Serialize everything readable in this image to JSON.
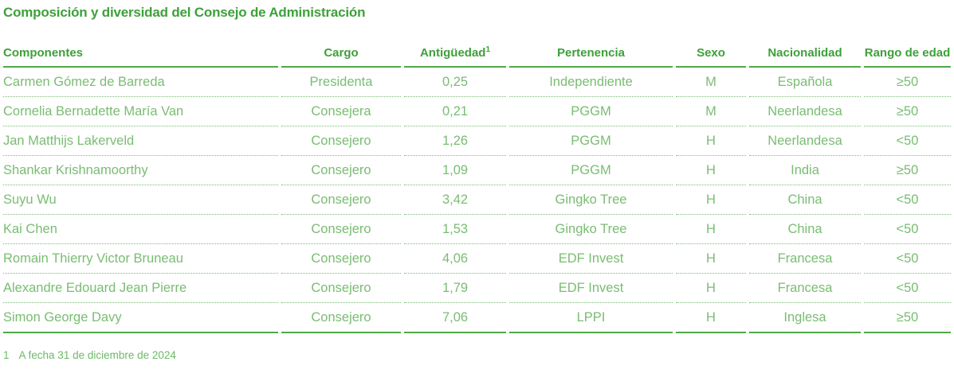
{
  "title": "Composición y diversidad del Consejo de Administración",
  "colors": {
    "heading_green": "#3ea03a",
    "body_green": "#79bd72",
    "solid_line_green": "#4fa948",
    "dotted_line_green": "#79bd72",
    "background": "#ffffff"
  },
  "table": {
    "columns": [
      {
        "label": "Componentes",
        "sup": "",
        "align": "left"
      },
      {
        "label": "Cargo",
        "sup": "",
        "align": "center"
      },
      {
        "label": "Antigüedad",
        "sup": "1",
        "align": "center"
      },
      {
        "label": "Pertenencia",
        "sup": "",
        "align": "center"
      },
      {
        "label": "Sexo",
        "sup": "",
        "align": "center"
      },
      {
        "label": "Nacionalidad",
        "sup": "",
        "align": "center"
      },
      {
        "label": "Rango de edad",
        "sup": "",
        "align": "center"
      }
    ],
    "rows": [
      [
        "Carmen Gómez de Barreda",
        "Presidenta",
        "0,25",
        "Independiente",
        "M",
        "Española",
        "≥50"
      ],
      [
        "Cornelia Bernadette María Van",
        "Consejera",
        "0,21",
        "PGGM",
        "M",
        "Neerlandesa",
        "≥50"
      ],
      [
        "Jan Matthijs Lakerveld",
        "Consejero",
        "1,26",
        "PGGM",
        "H",
        "Neerlandesa",
        "<50"
      ],
      [
        "Shankar Krishnamoorthy",
        "Consejero",
        "1,09",
        "PGGM",
        "H",
        "India",
        "≥50"
      ],
      [
        "Suyu Wu",
        "Consejero",
        "3,42",
        "Gingko Tree",
        "H",
        "China",
        "<50"
      ],
      [
        "Kai Chen",
        "Consejero",
        "1,53",
        "Gingko Tree",
        "H",
        "China",
        "<50"
      ],
      [
        "Romain Thierry Victor Bruneau",
        "Consejero",
        "4,06",
        "EDF Invest",
        "H",
        "Francesa",
        "<50"
      ],
      [
        "Alexandre Edouard Jean Pierre",
        "Consejero",
        "1,79",
        "EDF Invest",
        "H",
        "Francesa",
        "<50"
      ],
      [
        "Simon George Davy",
        "Consejero",
        "7,06",
        "LPPI",
        "H",
        "Inglesa",
        "≥50"
      ]
    ]
  },
  "footnote": {
    "marker": "1",
    "text": "A fecha 31 de diciembre de 2024"
  }
}
